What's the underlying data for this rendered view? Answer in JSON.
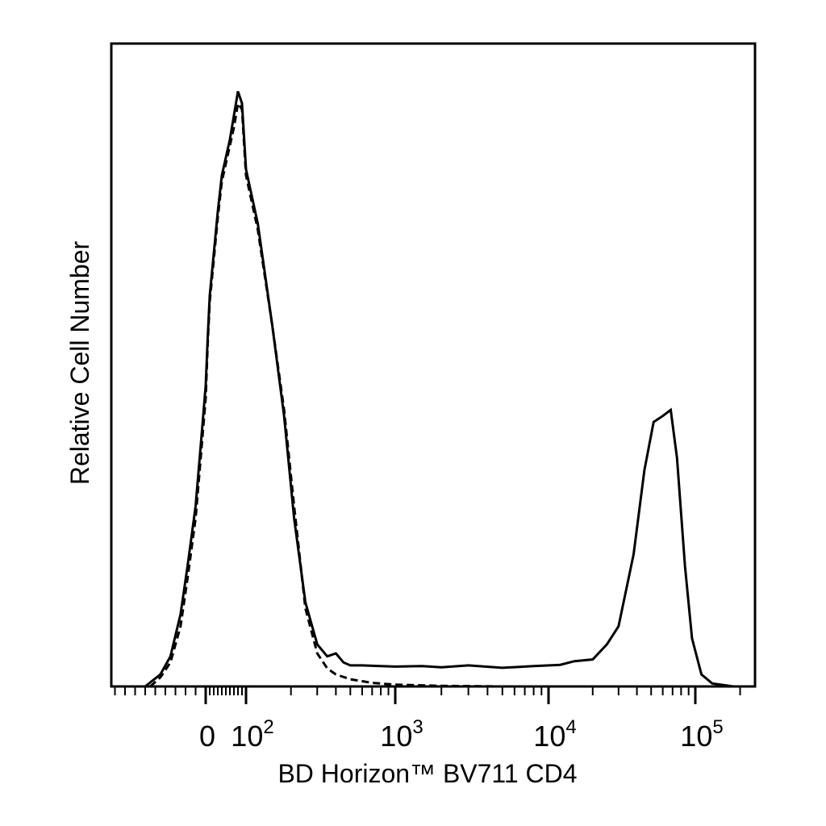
{
  "chart_data": {
    "type": "line",
    "chart_subtype": "flow cytometry histogram",
    "xlabel": "BD Horizon™ BV711 CD4",
    "ylabel": "Relative Cell Number",
    "x_scale": "biexponential (linear near 0, log above ~10^2)",
    "x_tick_labels": [
      {
        "text": "0",
        "value": 0
      },
      {
        "base": "10",
        "exp": "2",
        "value": 100
      },
      {
        "base": "10",
        "exp": "3",
        "value": 1000
      },
      {
        "base": "10",
        "exp": "4",
        "value": 10000
      },
      {
        "base": "10",
        "exp": "5",
        "value": 100000
      }
    ],
    "y_range": [
      0,
      1
    ],
    "grid": false,
    "legend": "none",
    "series": [
      {
        "style": "solid",
        "color": "#000000",
        "points": [
          [
            -60,
            0.0
          ],
          [
            -45,
            0.02
          ],
          [
            -35,
            0.05
          ],
          [
            -25,
            0.12
          ],
          [
            -18,
            0.2
          ],
          [
            -10,
            0.3
          ],
          [
            -5,
            0.4
          ],
          [
            0,
            0.5
          ],
          [
            5,
            0.58
          ],
          [
            10,
            0.65
          ],
          [
            20,
            0.72
          ],
          [
            30,
            0.79
          ],
          [
            40,
            0.85
          ],
          [
            50,
            0.88
          ],
          [
            60,
            0.91
          ],
          [
            70,
            0.95
          ],
          [
            80,
            0.99
          ],
          [
            90,
            0.97
          ],
          [
            100,
            0.86
          ],
          [
            120,
            0.77
          ],
          [
            150,
            0.6
          ],
          [
            180,
            0.45
          ],
          [
            210,
            0.28
          ],
          [
            250,
            0.14
          ],
          [
            300,
            0.07
          ],
          [
            350,
            0.05
          ],
          [
            400,
            0.055
          ],
          [
            450,
            0.04
          ],
          [
            500,
            0.035
          ],
          [
            600,
            0.035
          ],
          [
            800,
            0.034
          ],
          [
            1000,
            0.033
          ],
          [
            1500,
            0.034
          ],
          [
            2000,
            0.032
          ],
          [
            3000,
            0.035
          ],
          [
            5000,
            0.031
          ],
          [
            8000,
            0.034
          ],
          [
            12000,
            0.036
          ],
          [
            15000,
            0.042
          ],
          [
            20000,
            0.045
          ],
          [
            25000,
            0.07
          ],
          [
            30000,
            0.1
          ],
          [
            38000,
            0.22
          ],
          [
            45000,
            0.36
          ],
          [
            52000,
            0.44
          ],
          [
            60000,
            0.45
          ],
          [
            68000,
            0.46
          ],
          [
            75000,
            0.38
          ],
          [
            85000,
            0.2
          ],
          [
            95000,
            0.08
          ],
          [
            110000,
            0.02
          ],
          [
            130000,
            0.005
          ],
          [
            180000,
            0.0
          ]
        ]
      },
      {
        "style": "dashed",
        "color": "#000000",
        "points": [
          [
            -55,
            0.0
          ],
          [
            -45,
            0.015
          ],
          [
            -35,
            0.04
          ],
          [
            -25,
            0.1
          ],
          [
            -18,
            0.18
          ],
          [
            -10,
            0.28
          ],
          [
            -5,
            0.38
          ],
          [
            0,
            0.48
          ],
          [
            5,
            0.57
          ],
          [
            10,
            0.64
          ],
          [
            20,
            0.71
          ],
          [
            30,
            0.78
          ],
          [
            40,
            0.84
          ],
          [
            50,
            0.87
          ],
          [
            60,
            0.9
          ],
          [
            70,
            0.93
          ],
          [
            80,
            0.97
          ],
          [
            90,
            0.96
          ],
          [
            100,
            0.85
          ],
          [
            120,
            0.76
          ],
          [
            150,
            0.6
          ],
          [
            180,
            0.46
          ],
          [
            210,
            0.3
          ],
          [
            250,
            0.13
          ],
          [
            300,
            0.055
          ],
          [
            350,
            0.03
          ],
          [
            400,
            0.02
          ],
          [
            500,
            0.012
          ],
          [
            700,
            0.006
          ],
          [
            1000,
            0.003
          ],
          [
            2000,
            0.001
          ],
          [
            5000,
            0.0
          ],
          [
            20000,
            0.0
          ],
          [
            100000,
            0.0
          ],
          [
            180000,
            0.0
          ]
        ]
      }
    ]
  }
}
